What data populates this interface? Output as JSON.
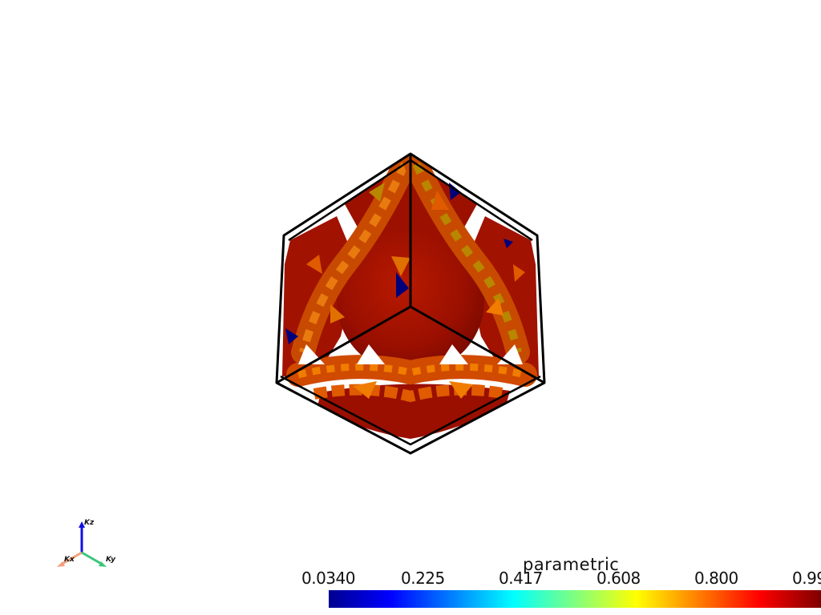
{
  "viewer": {
    "background": "#ffffff",
    "frame_color": "#000000",
    "surface_colors": [
      "#8b0a00",
      "#a81500",
      "#c32f00",
      "#e05a00",
      "#f07c00",
      "#b88600",
      "#9a6a10",
      "#00007a"
    ]
  },
  "axes_widget": {
    "labels": {
      "x": "Kx",
      "y": "Ky",
      "z": "Kz"
    },
    "colors": {
      "x": "#f4a07a",
      "y": "#3cc57a",
      "z": "#1010e0"
    }
  },
  "scalar_bar": {
    "title": "parametric",
    "ticks": [
      "0.0340",
      "0.225",
      "0.417",
      "0.608",
      "0.800",
      "0.99"
    ],
    "colormap": [
      "#00008f",
      "#0000ff",
      "#007fff",
      "#00ffff",
      "#7fff7f",
      "#ffff00",
      "#ff7f00",
      "#ff0000",
      "#7f0000"
    ]
  }
}
